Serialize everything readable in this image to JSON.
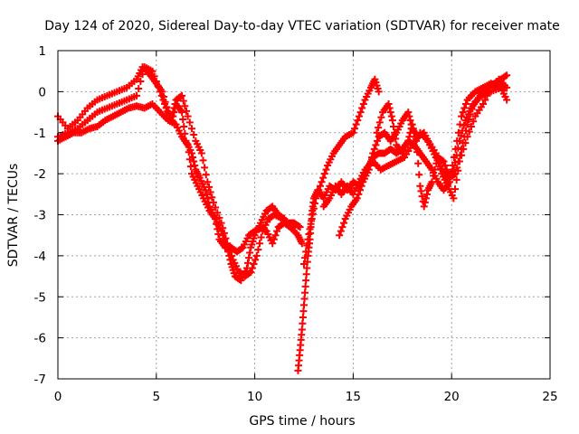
{
  "chart_data": {
    "type": "scatter",
    "title": "Day 124 of 2020, Sidereal Day-to-day VTEC variation (SDTVAR) for receiver mate",
    "xlabel": "GPS time / hours",
    "ylabel": "SDTVAR / TECUs",
    "xlim": [
      0,
      25
    ],
    "ylim": [
      -7,
      1
    ],
    "xticks": [
      0,
      5,
      10,
      15,
      20,
      25
    ],
    "yticks": [
      -7,
      -6,
      -5,
      -4,
      -3,
      -2,
      -1,
      0,
      1
    ],
    "grid": true,
    "marker": "plus",
    "color": "#ff0000",
    "series": [
      {
        "name": "trace-1",
        "points": [
          [
            0,
            -0.6
          ],
          [
            0.5,
            -0.9
          ],
          [
            1,
            -0.7
          ],
          [
            1.5,
            -0.4
          ],
          [
            2,
            -0.2
          ],
          [
            2.5,
            -0.1
          ],
          [
            3,
            0
          ],
          [
            3.5,
            0.1
          ],
          [
            4,
            0.3
          ],
          [
            4.3,
            0.6
          ],
          [
            4.7,
            0.4
          ],
          [
            5,
            0.2
          ],
          [
            5.3,
            0
          ],
          [
            5.6,
            -0.5
          ],
          [
            5.8,
            -0.6
          ],
          [
            6,
            -0.2
          ],
          [
            6.3,
            -0.1
          ],
          [
            6.6,
            -0.6
          ],
          [
            7,
            -1.2
          ],
          [
            7.3,
            -1.5
          ],
          [
            7.6,
            -2.2
          ],
          [
            7.9,
            -2.7
          ],
          [
            8.3,
            -3.2
          ],
          [
            8.6,
            -3.7
          ],
          [
            8.9,
            -4.1
          ],
          [
            9.2,
            -4.4
          ],
          [
            9.5,
            -4.5
          ],
          [
            9.8,
            -4.4
          ],
          [
            10.1,
            -4
          ],
          [
            10.4,
            -3.4
          ],
          [
            10.7,
            -3.1
          ],
          [
            11,
            -3
          ],
          [
            11.4,
            -3.1
          ],
          [
            11.7,
            -3.2
          ],
          [
            12,
            -3.2
          ],
          [
            12.3,
            -3.3
          ]
        ]
      },
      {
        "name": "trace-2",
        "points": [
          [
            0,
            -1.1
          ],
          [
            0.5,
            -1.0
          ],
          [
            1,
            -0.9
          ],
          [
            1.5,
            -0.7
          ],
          [
            2,
            -0.5
          ],
          [
            2.5,
            -0.4
          ],
          [
            3,
            -0.3
          ],
          [
            3.5,
            -0.2
          ],
          [
            4,
            -0.1
          ],
          [
            4.4,
            0.6
          ],
          [
            4.8,
            0.5
          ],
          [
            5.2,
            0
          ],
          [
            5.5,
            -0.4
          ],
          [
            5.8,
            -0.7
          ],
          [
            6,
            -0.3
          ],
          [
            6.3,
            -0.5
          ],
          [
            6.5,
            -1.2
          ],
          [
            6.8,
            -1.5
          ],
          [
            7,
            -1.9
          ],
          [
            7.2,
            -2.1
          ],
          [
            7.5,
            -2.4
          ],
          [
            7.7,
            -2.8
          ],
          [
            8,
            -3.1
          ],
          [
            8.3,
            -3.4
          ],
          [
            8.6,
            -3.8
          ],
          [
            8.8,
            -4.2
          ],
          [
            9,
            -4.5
          ],
          [
            9.3,
            -4.6
          ],
          [
            9.6,
            -4.3
          ],
          [
            9.8,
            -3.8
          ],
          [
            10,
            -3.5
          ],
          [
            10.3,
            -3.2
          ],
          [
            10.6,
            -2.9
          ],
          [
            10.9,
            -2.8
          ],
          [
            11.2,
            -3
          ],
          [
            11.5,
            -3.1
          ],
          [
            11.8,
            -3.3
          ],
          [
            12.2,
            -3.5
          ],
          [
            12.4,
            -3.7
          ]
        ]
      },
      {
        "name": "trace-3",
        "points": [
          [
            0,
            -1.2
          ],
          [
            0.4,
            -1.1
          ],
          [
            0.8,
            -1.0
          ],
          [
            1.2,
            -1.0
          ],
          [
            1.6,
            -0.9
          ],
          [
            2,
            -0.85
          ],
          [
            2.4,
            -0.7
          ],
          [
            2.8,
            -0.6
          ],
          [
            3.2,
            -0.5
          ],
          [
            3.6,
            -0.4
          ],
          [
            4,
            -0.35
          ],
          [
            4.4,
            -0.4
          ],
          [
            4.8,
            -0.3
          ],
          [
            5.2,
            -0.5
          ],
          [
            5.6,
            -0.7
          ],
          [
            6,
            -0.8
          ],
          [
            6.3,
            -1.1
          ],
          [
            6.6,
            -1.3
          ],
          [
            6.8,
            -2.0
          ],
          [
            7.1,
            -2.3
          ],
          [
            7.4,
            -2.6
          ],
          [
            7.7,
            -2.9
          ],
          [
            8,
            -3.1
          ],
          [
            8.2,
            -3.6
          ],
          [
            8.5,
            -3.8
          ],
          [
            8.8,
            -3.8
          ],
          [
            9.1,
            -3.9
          ],
          [
            9.4,
            -3.8
          ],
          [
            9.7,
            -3.5
          ],
          [
            10,
            -3.4
          ],
          [
            10.3,
            -3.3
          ],
          [
            10.6,
            -3.4
          ],
          [
            10.9,
            -3.7
          ],
          [
            11.2,
            -3.3
          ],
          [
            11.5,
            -3.2
          ],
          [
            11.8,
            -3.3
          ],
          [
            12,
            -3.3
          ]
        ]
      },
      {
        "name": "trace-4",
        "points": [
          [
            12.2,
            -6.8
          ],
          [
            12.3,
            -6.3
          ],
          [
            12.4,
            -5.8
          ],
          [
            12.5,
            -5.2
          ],
          [
            12.6,
            -4.6
          ],
          [
            12.7,
            -4.0
          ],
          [
            12.8,
            -3.6
          ],
          [
            12.9,
            -3.0
          ],
          [
            13,
            -2.6
          ],
          [
            13.2,
            -2.4
          ],
          [
            13.5,
            -2.6
          ],
          [
            13.8,
            -2.3
          ],
          [
            14.1,
            -2.4
          ],
          [
            14.4,
            -2.2
          ],
          [
            14.7,
            -2.4
          ],
          [
            15,
            -2.2
          ],
          [
            15.3,
            -2.3
          ],
          [
            15.5,
            -2.1
          ],
          [
            15.8,
            -1.8
          ],
          [
            16,
            -1.6
          ],
          [
            16.3,
            -1.5
          ],
          [
            16.6,
            -1.5
          ],
          [
            16.9,
            -1.4
          ],
          [
            17.2,
            -1.5
          ],
          [
            17.5,
            -1.4
          ],
          [
            17.8,
            -1.2
          ],
          [
            18.1,
            -1.3
          ],
          [
            18.4,
            -1.5
          ],
          [
            18.7,
            -1.7
          ],
          [
            19,
            -1.9
          ],
          [
            19.3,
            -2.2
          ],
          [
            19.6,
            -2.4
          ],
          [
            19.9,
            -2.2
          ],
          [
            20.2,
            -1.4
          ],
          [
            20.5,
            -0.6
          ],
          [
            20.8,
            -0.2
          ],
          [
            21.2,
            0
          ],
          [
            21.6,
            0.1
          ],
          [
            22,
            0.2
          ],
          [
            22.4,
            0.1
          ],
          [
            22.7,
            0.1
          ]
        ]
      },
      {
        "name": "trace-5",
        "points": [
          [
            12.5,
            -4.2
          ],
          [
            12.7,
            -3.6
          ],
          [
            12.9,
            -3.1
          ],
          [
            13.1,
            -2.6
          ],
          [
            13.4,
            -2.2
          ],
          [
            13.7,
            -1.8
          ],
          [
            14,
            -1.5
          ],
          [
            14.3,
            -1.3
          ],
          [
            14.6,
            -1.1
          ],
          [
            15,
            -1.0
          ],
          [
            15.3,
            -0.6
          ],
          [
            15.6,
            -0.2
          ],
          [
            15.9,
            0.1
          ],
          [
            16.1,
            0.3
          ],
          [
            16.3,
            0
          ]
        ]
      },
      {
        "name": "trace-6",
        "points": [
          [
            14.3,
            -3.5
          ],
          [
            14.6,
            -3.1
          ],
          [
            14.9,
            -2.8
          ],
          [
            15.2,
            -2.6
          ],
          [
            15.5,
            -2.2
          ],
          [
            15.8,
            -1.9
          ],
          [
            16,
            -1.5
          ],
          [
            16.3,
            -1.1
          ],
          [
            16.6,
            -1.0
          ],
          [
            16.9,
            -1.2
          ],
          [
            17.2,
            -1.0
          ],
          [
            17.5,
            -0.7
          ],
          [
            17.8,
            -0.5
          ],
          [
            18,
            -0.9
          ],
          [
            18.3,
            -1.1
          ],
          [
            18.6,
            -1.0
          ],
          [
            18.9,
            -1.3
          ],
          [
            19.2,
            -1.6
          ],
          [
            19.5,
            -1.9
          ],
          [
            19.8,
            -2.1
          ],
          [
            20.1,
            -1.9
          ],
          [
            20.4,
            -1.2
          ],
          [
            20.7,
            -0.7
          ],
          [
            21,
            -0.4
          ],
          [
            21.3,
            -0.2
          ],
          [
            21.6,
            0
          ],
          [
            21.9,
            0.15
          ],
          [
            22.2,
            0.2
          ],
          [
            22.5,
            0.3
          ],
          [
            22.8,
            0.4
          ]
        ]
      },
      {
        "name": "trace-7",
        "points": [
          [
            16.2,
            -1.0
          ],
          [
            16.5,
            -0.5
          ],
          [
            16.8,
            -0.3
          ],
          [
            17,
            -0.7
          ],
          [
            17.2,
            -1.3
          ],
          [
            17.5,
            -1.5
          ],
          [
            17.8,
            -1.2
          ],
          [
            18,
            -0.8
          ],
          [
            18.2,
            -1.2
          ],
          [
            18.4,
            -2.3
          ],
          [
            18.6,
            -2.8
          ],
          [
            18.8,
            -2.4
          ],
          [
            19,
            -2.2
          ],
          [
            19.3,
            -1.6
          ],
          [
            19.6,
            -1.7
          ],
          [
            19.9,
            -2.1
          ],
          [
            20.2,
            -2.0
          ],
          [
            20.5,
            -1.4
          ],
          [
            20.8,
            -0.8
          ],
          [
            21.1,
            -0.3
          ],
          [
            21.5,
            -0.1
          ],
          [
            22,
            0
          ],
          [
            22.5,
            0.1
          ],
          [
            22.8,
            -0.2
          ]
        ]
      },
      {
        "name": "trace-8",
        "points": [
          [
            13.5,
            -2.8
          ],
          [
            13.8,
            -2.6
          ],
          [
            14.1,
            -2.3
          ],
          [
            14.4,
            -2.5
          ],
          [
            14.7,
            -2.3
          ],
          [
            15,
            -2.5
          ],
          [
            15.3,
            -2.2
          ],
          [
            15.6,
            -1.9
          ],
          [
            16,
            -1.7
          ],
          [
            16.4,
            -1.9
          ],
          [
            16.8,
            -1.8
          ],
          [
            17.2,
            -1.7
          ],
          [
            17.6,
            -1.6
          ],
          [
            18,
            -1.3
          ],
          [
            18.4,
            -1.0
          ],
          [
            18.8,
            -1.2
          ],
          [
            19.2,
            -1.5
          ],
          [
            19.5,
            -2.0
          ],
          [
            19.8,
            -2.3
          ],
          [
            20.1,
            -2.6
          ],
          [
            20.4,
            -1.7
          ],
          [
            20.8,
            -1.1
          ],
          [
            21.2,
            -0.6
          ],
          [
            21.6,
            -0.3
          ],
          [
            22,
            0.1
          ],
          [
            22.4,
            0.3
          ],
          [
            22.8,
            0.1
          ]
        ]
      }
    ]
  }
}
